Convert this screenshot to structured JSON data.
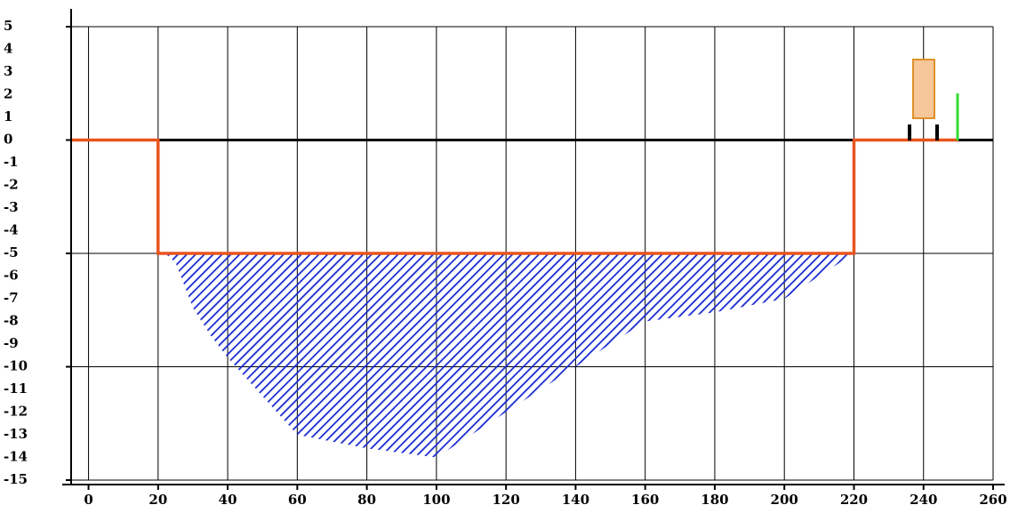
{
  "chart_data": {
    "type": "cross-section",
    "xlim": [
      -5,
      260
    ],
    "ylim": [
      -15,
      5
    ],
    "xticks": [
      0,
      20,
      40,
      60,
      80,
      100,
      120,
      140,
      160,
      180,
      200,
      220,
      240,
      260
    ],
    "yticks": [
      5,
      4,
      3,
      2,
      1,
      0,
      -1,
      -2,
      -3,
      -4,
      -5,
      -6,
      -7,
      -8,
      -9,
      -10,
      -11,
      -12,
      -13,
      -14,
      -15
    ],
    "grid_step_y": 5,
    "grid": true,
    "profile": {
      "color": "#e8541e",
      "x": [
        -5,
        20,
        20,
        220,
        220,
        250
      ],
      "y": [
        0,
        0,
        -5,
        -5,
        0,
        0
      ]
    },
    "bed": {
      "color": "#1a2ad0",
      "x": [
        22,
        25,
        30,
        35,
        40,
        60,
        80,
        100,
        120,
        140,
        160,
        180,
        200,
        220
      ],
      "y": [
        -5,
        -5.4,
        -7.4,
        -8.6,
        -9.6,
        -13,
        -13.6,
        -14,
        -12,
        -10,
        -8,
        -7.6,
        -7,
        -5
      ]
    }
  }
}
